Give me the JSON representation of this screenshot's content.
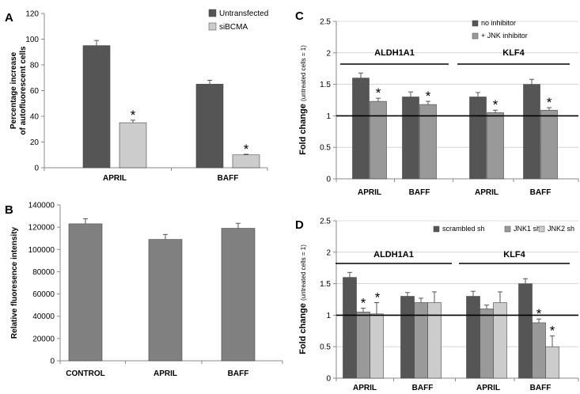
{
  "colors": {
    "dark": "#555555",
    "medium": "#999999",
    "light": "#cccccc",
    "plainbar": "#808080",
    "axis": "#000000",
    "grid": "#bbbbbb"
  },
  "chart_data": [
    {
      "id": "A",
      "panel_label": "A",
      "type": "bar",
      "title": "",
      "ylabel": [
        "Percentage increase",
        "of autofluorescent cells"
      ],
      "xlabel": "",
      "ylim": [
        0,
        120
      ],
      "yticks": [
        0,
        20,
        40,
        60,
        80,
        100,
        120
      ],
      "ytick_labels": [
        "0",
        "20",
        "40",
        "60",
        "80",
        "100",
        "120"
      ],
      "categories": [
        "APRIL",
        "BAFF"
      ],
      "series": [
        {
          "name": "Untransfected",
          "color": "#555555",
          "values": [
            95,
            65
          ],
          "errors": [
            4,
            3
          ],
          "stars": [
            false,
            false
          ]
        },
        {
          "name": "siBCMA",
          "color": "#cccccc",
          "values": [
            35,
            10
          ],
          "errors": [
            2,
            0.5
          ],
          "stars": [
            true,
            true
          ]
        }
      ],
      "star_symbol": "*",
      "legend": "top-right",
      "grid": false
    },
    {
      "id": "B",
      "panel_label": "B",
      "type": "bar",
      "title": "",
      "ylabel": [
        "Relative fluoresence intensity"
      ],
      "xlabel": "",
      "ylim": [
        0,
        140000
      ],
      "yticks": [
        0,
        20000,
        40000,
        60000,
        80000,
        100000,
        120000,
        140000
      ],
      "ytick_labels": [
        "0",
        "20000",
        "40000",
        "60000",
        "80000",
        "100000",
        "120000",
        "140000"
      ],
      "categories": [
        "CONTROL",
        "APRIL",
        "BAFF"
      ],
      "series": [
        {
          "name": "",
          "color": "#808080",
          "values": [
            123000,
            109000,
            119000
          ],
          "errors": [
            4500,
            4500,
            4500
          ],
          "stars": [
            false,
            false,
            false
          ]
        }
      ],
      "legend": "none",
      "grid": false
    },
    {
      "id": "C",
      "panel_label": "C",
      "type": "bar",
      "title": "",
      "ylabel_main": "Fold change",
      "ylabel_sub": "(untreated cells = 1)",
      "xlabel": "",
      "ylim": [
        0,
        2.5
      ],
      "yticks": [
        0,
        0.5,
        1,
        1.5,
        2,
        2.5
      ],
      "ytick_labels": [
        "0",
        "0.5",
        "1",
        "1.5",
        "2",
        "2.5"
      ],
      "categories": [
        "APRIL",
        "BAFF",
        "APRIL",
        "BAFF"
      ],
      "groups": [
        {
          "label": "ALDH1A1",
          "span": [
            0,
            1
          ]
        },
        {
          "label": "KLF4",
          "span": [
            2,
            3
          ]
        }
      ],
      "reference_line": 1,
      "series": [
        {
          "name": "no inhibitor",
          "color": "#555555",
          "values": [
            1.6,
            1.3,
            1.3,
            1.5
          ],
          "errors": [
            0.08,
            0.08,
            0.07,
            0.08
          ],
          "stars": [
            false,
            false,
            false,
            false
          ]
        },
        {
          "name": "+ JNK inhibitor",
          "color": "#999999",
          "values": [
            1.23,
            1.18,
            1.05,
            1.09
          ],
          "errors": [
            0.05,
            0.05,
            0.04,
            0.04
          ],
          "stars": [
            true,
            true,
            true,
            true
          ]
        }
      ],
      "star_symbol": "*",
      "legend": "top-right",
      "grid": true
    },
    {
      "id": "D",
      "panel_label": "D",
      "type": "bar",
      "title": "",
      "ylabel_main": "Fold change",
      "ylabel_sub": "(untreated cells = 1)",
      "xlabel": "",
      "ylim": [
        0,
        2.5
      ],
      "yticks": [
        0,
        0.5,
        1,
        1.5,
        2,
        2.5
      ],
      "ytick_labels": [
        "0",
        "0.5",
        "1",
        "1.5",
        "2",
        "2.5"
      ],
      "categories": [
        "APRIL",
        "BAFF",
        "APRIL",
        "BAFF"
      ],
      "groups": [
        {
          "label": "ALDH1A1",
          "span": [
            0,
            1
          ]
        },
        {
          "label": "KLF4",
          "span": [
            2,
            3
          ]
        }
      ],
      "reference_line": 1,
      "series": [
        {
          "name": "scrambled sh",
          "color": "#555555",
          "values": [
            1.6,
            1.3,
            1.3,
            1.5
          ],
          "errors": [
            0.08,
            0.06,
            0.08,
            0.08
          ],
          "stars": [
            false,
            false,
            false,
            false
          ]
        },
        {
          "name": "JNK1 sh",
          "color": "#999999",
          "values": [
            1.05,
            1.2,
            1.1,
            0.88
          ],
          "errors": [
            0.06,
            0.07,
            0.06,
            0.06
          ],
          "stars": [
            true,
            false,
            false,
            true
          ]
        },
        {
          "name": "JNK2 sh",
          "color": "#cccccc",
          "values": [
            1.02,
            1.2,
            1.2,
            0.5
          ],
          "errors": [
            0.18,
            0.17,
            0.17,
            0.17
          ],
          "stars": [
            true,
            false,
            false,
            true
          ]
        }
      ],
      "star_symbol": "*",
      "legend": "top-right",
      "grid": true
    }
  ]
}
